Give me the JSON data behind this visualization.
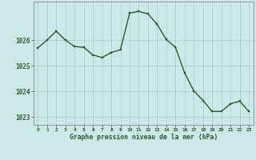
{
  "hours": [
    0,
    1,
    2,
    3,
    4,
    5,
    6,
    7,
    8,
    9,
    10,
    11,
    12,
    13,
    14,
    15,
    16,
    17,
    18,
    19,
    20,
    21,
    22,
    23
  ],
  "pressure": [
    1025.7,
    1026.0,
    1026.35,
    1026.0,
    1025.75,
    1025.72,
    1025.42,
    1025.32,
    1025.52,
    1025.62,
    1027.05,
    1027.12,
    1027.02,
    1026.62,
    1026.02,
    1025.72,
    1024.72,
    1024.02,
    1023.65,
    1023.22,
    1023.22,
    1023.52,
    1023.62,
    1023.22
  ],
  "line_color": "#2d5a27",
  "marker_color": "#2d5a27",
  "bg_color": "#cce8e8",
  "grid_color": "#aacccc",
  "axis_border_color": "#888888",
  "xlabel": "Graphe pression niveau de la mer (hPa)",
  "xlabel_color": "#2d5a27",
  "tick_color": "#2d5a27",
  "ylim": [
    1022.7,
    1027.5
  ],
  "yticks": [
    1023,
    1024,
    1025,
    1026
  ],
  "ytick_labels": [
    "1023",
    "1024",
    "1025",
    "1026"
  ],
  "figsize": [
    3.2,
    2.0
  ],
  "dpi": 100
}
